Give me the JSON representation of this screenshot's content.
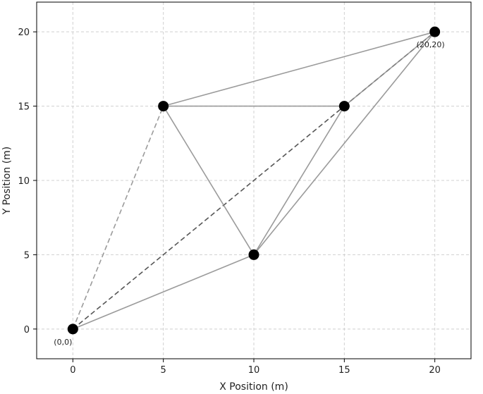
{
  "chart_data": {
    "type": "scatter",
    "xlabel": "X Position (m)",
    "ylabel": "Y Position (m)",
    "xlim": [
      -2,
      22
    ],
    "ylim": [
      -2,
      22
    ],
    "x_ticks": [
      0,
      5,
      10,
      15,
      20
    ],
    "y_ticks": [
      0,
      5,
      10,
      15,
      20
    ],
    "grid": true,
    "points": [
      {
        "id": "p0",
        "x": 0,
        "y": 0,
        "label": "(0,0)"
      },
      {
        "id": "p1",
        "x": 5,
        "y": 15,
        "label": ""
      },
      {
        "id": "p2",
        "x": 10,
        "y": 5,
        "label": ""
      },
      {
        "id": "p3",
        "x": 15,
        "y": 15,
        "label": ""
      },
      {
        "id": "p4",
        "x": 20,
        "y": 20,
        "label": "(20,20)"
      }
    ],
    "edges": [
      {
        "from": [
          0,
          0
        ],
        "to": [
          5,
          15
        ],
        "style": "dashed",
        "shade": "light"
      },
      {
        "from": [
          0,
          0
        ],
        "to": [
          10,
          5
        ],
        "style": "solid",
        "shade": "light"
      },
      {
        "from": [
          0,
          0
        ],
        "to": [
          15,
          15
        ],
        "style": "dashed",
        "shade": "dark"
      },
      {
        "from": [
          15,
          15
        ],
        "to": [
          20,
          20
        ],
        "style": "dashed",
        "shade": "dark"
      },
      {
        "from": [
          5,
          15
        ],
        "to": [
          15,
          15
        ],
        "style": "solid",
        "shade": "light"
      },
      {
        "from": [
          5,
          15
        ],
        "to": [
          20,
          20
        ],
        "style": "solid",
        "shade": "light"
      },
      {
        "from": [
          5,
          15
        ],
        "to": [
          10,
          5
        ],
        "style": "solid",
        "shade": "light"
      },
      {
        "from": [
          10,
          5
        ],
        "to": [
          15,
          15
        ],
        "style": "solid",
        "shade": "light"
      },
      {
        "from": [
          10,
          5
        ],
        "to": [
          20,
          20
        ],
        "style": "solid",
        "shade": "light"
      },
      {
        "from": [
          15,
          15
        ],
        "to": [
          20,
          20
        ],
        "style": "solid",
        "shade": "light"
      }
    ],
    "colors": {
      "point": "#000000",
      "edge_light": "#8a8a8a",
      "edge_dark": "#444444",
      "grid": "#d0d0d0",
      "axis": "#000000"
    }
  }
}
